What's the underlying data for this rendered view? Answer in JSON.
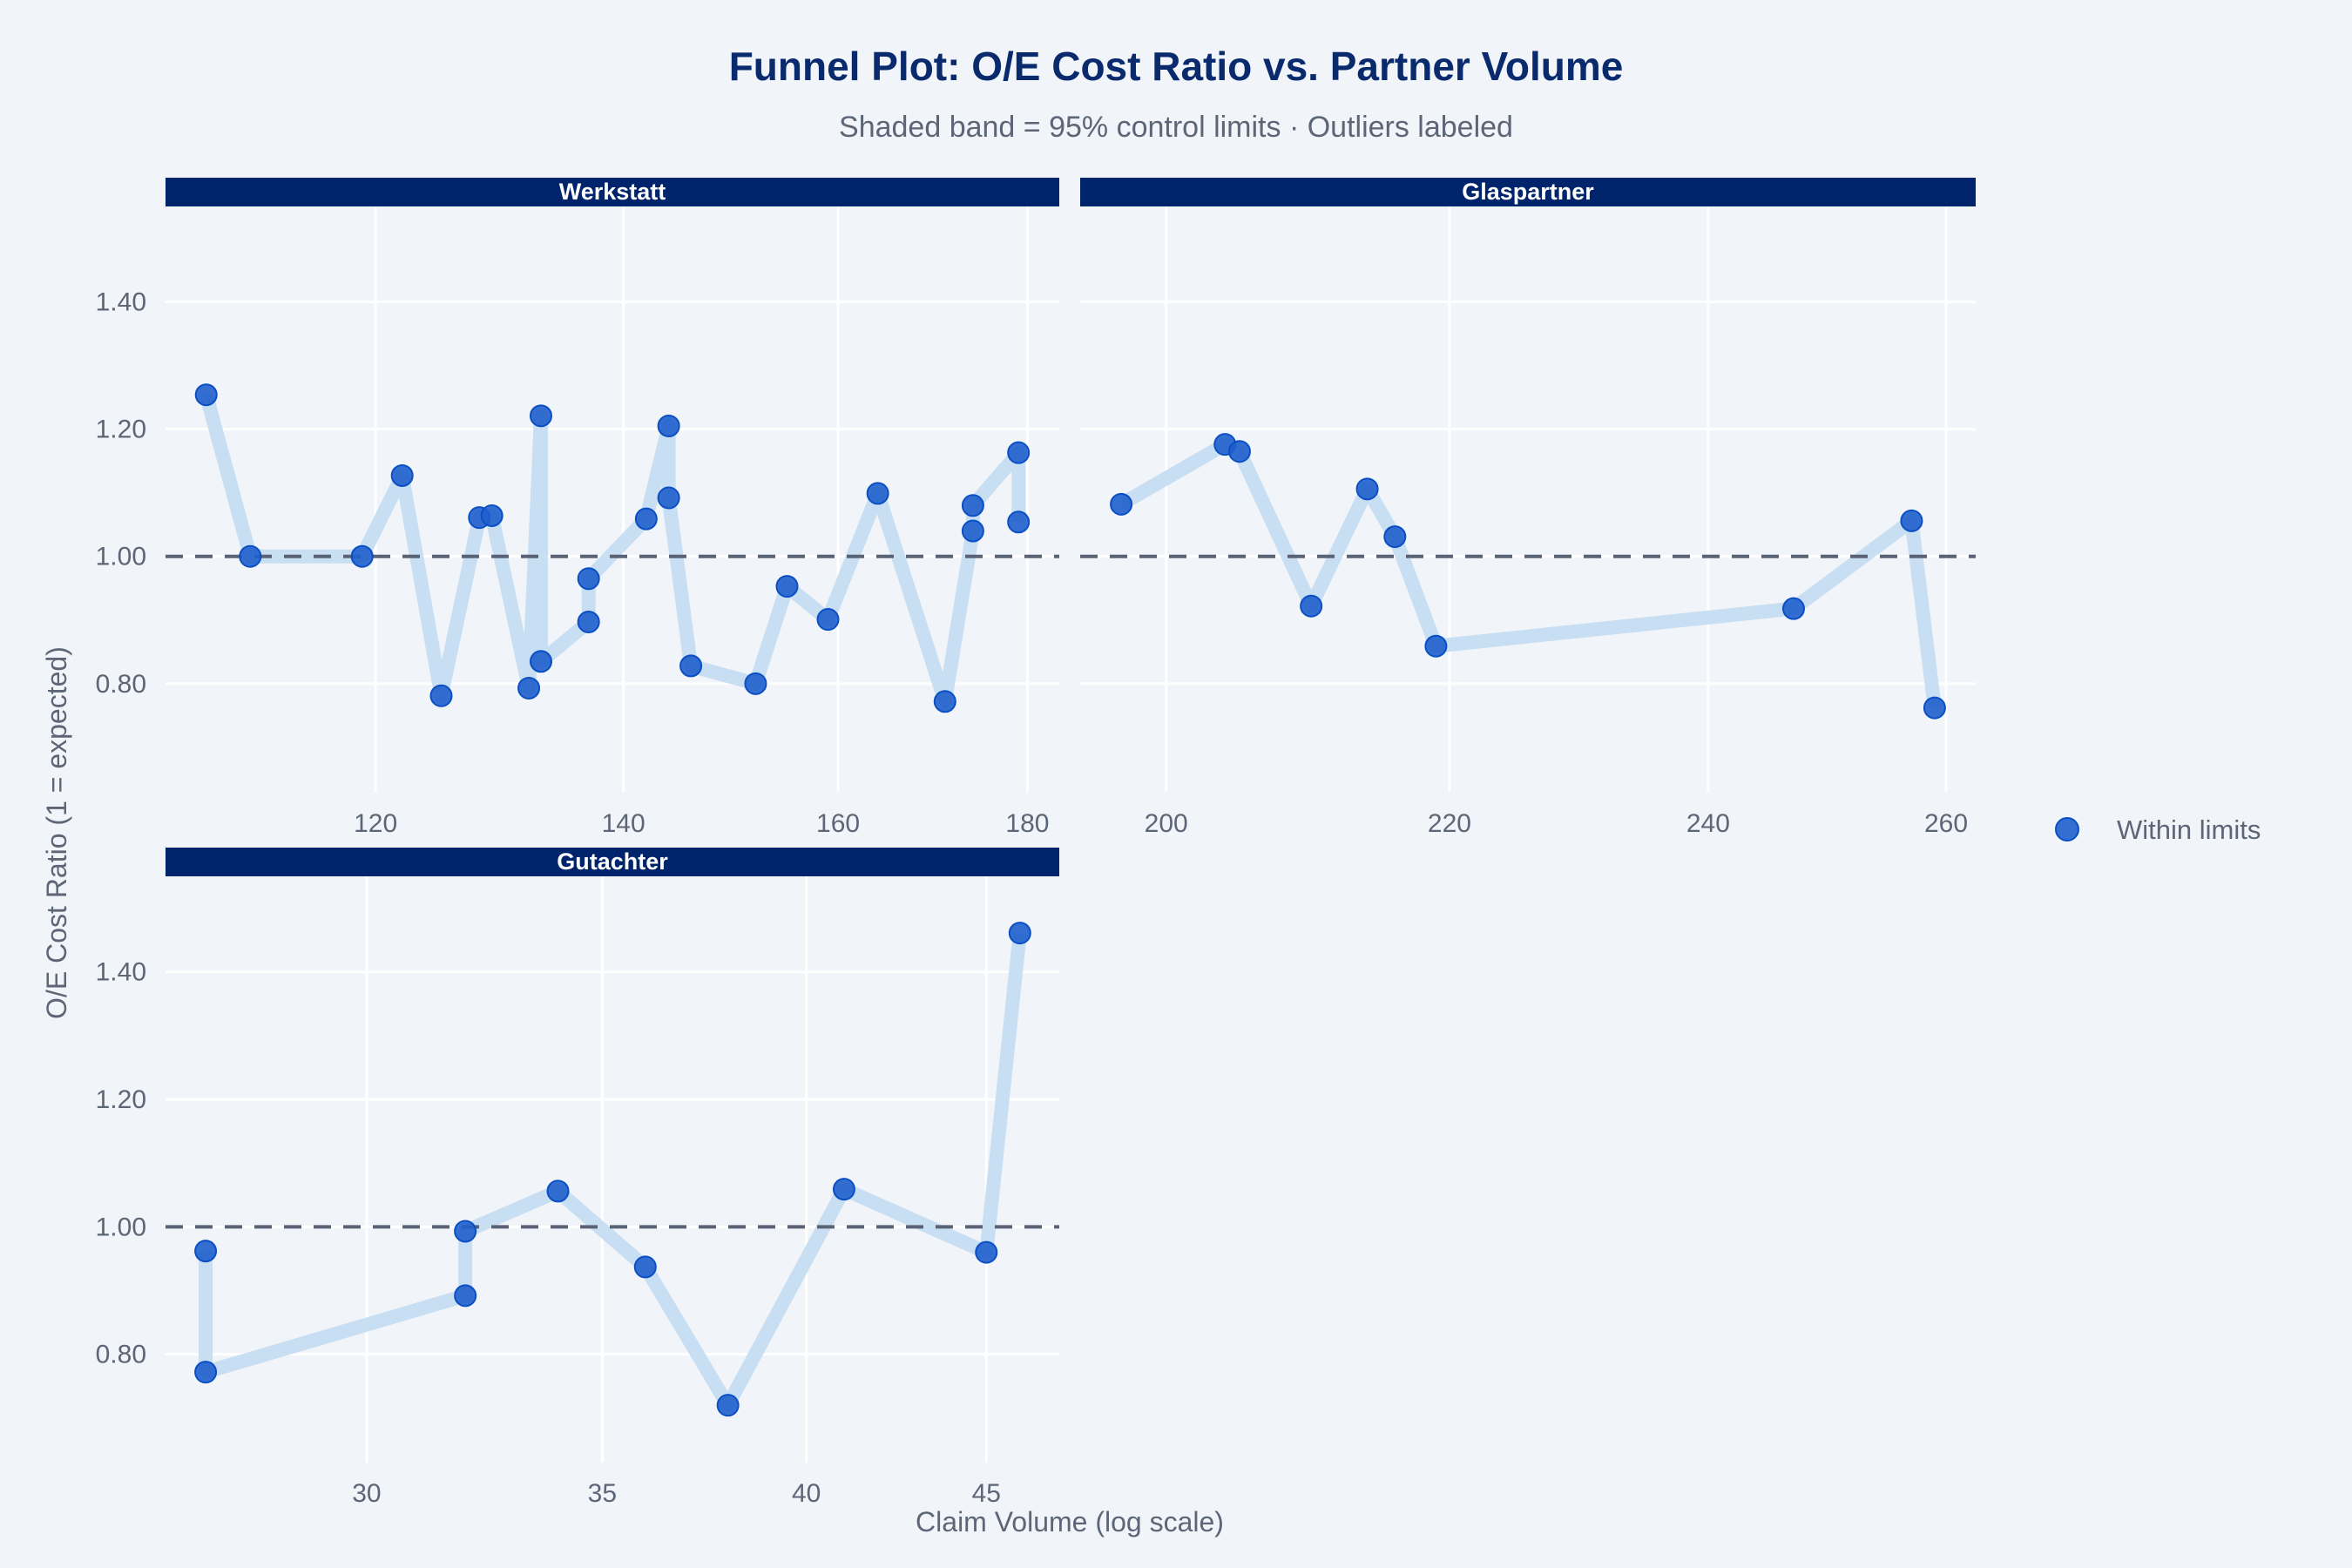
{
  "chart_data": {
    "type": "scatter",
    "title": "Funnel Plot: O/E Cost Ratio vs. Partner Volume",
    "subtitle": "Shaded band = 95% control limits · Outliers labeled",
    "xlabel": "Claim Volume (log scale)",
    "ylabel": "O/E Cost Ratio (1 = expected)",
    "xscale": "log",
    "ylim": [
      0.63,
      1.55
    ],
    "yticks": [
      0.8,
      1.0,
      1.2,
      1.4
    ],
    "ytick_labels": [
      "0.80",
      "1.00",
      "1.20",
      "1.40"
    ],
    "reference_line": 1.0,
    "grid": true,
    "colors": {
      "point": "#1f5fcc",
      "point_edge": "#0b4fc4",
      "band": "#c3dcf1",
      "reference": "#5a6275",
      "strip": "#00246b"
    },
    "legend": {
      "placement": "right",
      "entries": [
        "Within limits"
      ]
    },
    "panels": [
      {
        "name": "Werkstatt",
        "xlim": [
          105.3,
          183.6
        ],
        "xticks": [
          120,
          140,
          160,
          180
        ],
        "xtick_labels": [
          "120",
          "140",
          "160",
          "180"
        ],
        "points": [
          [
            108,
            1.254
          ],
          [
            111,
            1.0
          ],
          [
            119,
            1.0
          ],
          [
            122,
            1.127
          ],
          [
            125,
            0.781
          ],
          [
            128,
            1.061
          ],
          [
            129,
            1.064
          ],
          [
            132,
            0.793
          ],
          [
            133,
            1.221
          ],
          [
            133,
            0.835
          ],
          [
            137,
            0.897
          ],
          [
            137,
            0.965
          ],
          [
            142,
            1.059
          ],
          [
            144,
            1.205
          ],
          [
            144,
            1.092
          ],
          [
            146,
            0.828
          ],
          [
            152,
            0.8
          ],
          [
            155,
            0.953
          ],
          [
            159,
            0.901
          ],
          [
            164,
            1.099
          ],
          [
            171,
            0.772
          ],
          [
            174,
            1.04
          ],
          [
            174,
            1.08
          ],
          [
            179,
            1.163
          ],
          [
            179,
            1.054
          ]
        ]
      },
      {
        "name": "Glaspartner",
        "xlim": [
          194.3,
          262.6
        ],
        "xticks": [
          200,
          220,
          240,
          260
        ],
        "xtick_labels": [
          "200",
          "220",
          "240",
          "260"
        ],
        "points": [
          [
            197,
            1.082
          ],
          [
            204,
            1.176
          ],
          [
            205,
            1.165
          ],
          [
            210,
            0.922
          ],
          [
            214,
            1.106
          ],
          [
            216,
            1.031
          ],
          [
            219,
            0.859
          ],
          [
            247,
            0.918
          ],
          [
            257,
            1.056
          ],
          [
            259,
            0.762
          ]
        ]
      },
      {
        "name": "Gutachter",
        "xlim": [
          26.3,
          47.2
        ],
        "xticks": [
          30,
          35,
          40,
          45
        ],
        "xtick_labels": [
          "30",
          "35",
          "40",
          "45"
        ],
        "points": [
          [
            27,
            0.962
          ],
          [
            27,
            0.772
          ],
          [
            32,
            0.892
          ],
          [
            32,
            0.993
          ],
          [
            34,
            1.056
          ],
          [
            36,
            0.937
          ],
          [
            38,
            0.72
          ],
          [
            41,
            1.059
          ],
          [
            45,
            0.96
          ],
          [
            46,
            1.461
          ]
        ]
      }
    ]
  }
}
